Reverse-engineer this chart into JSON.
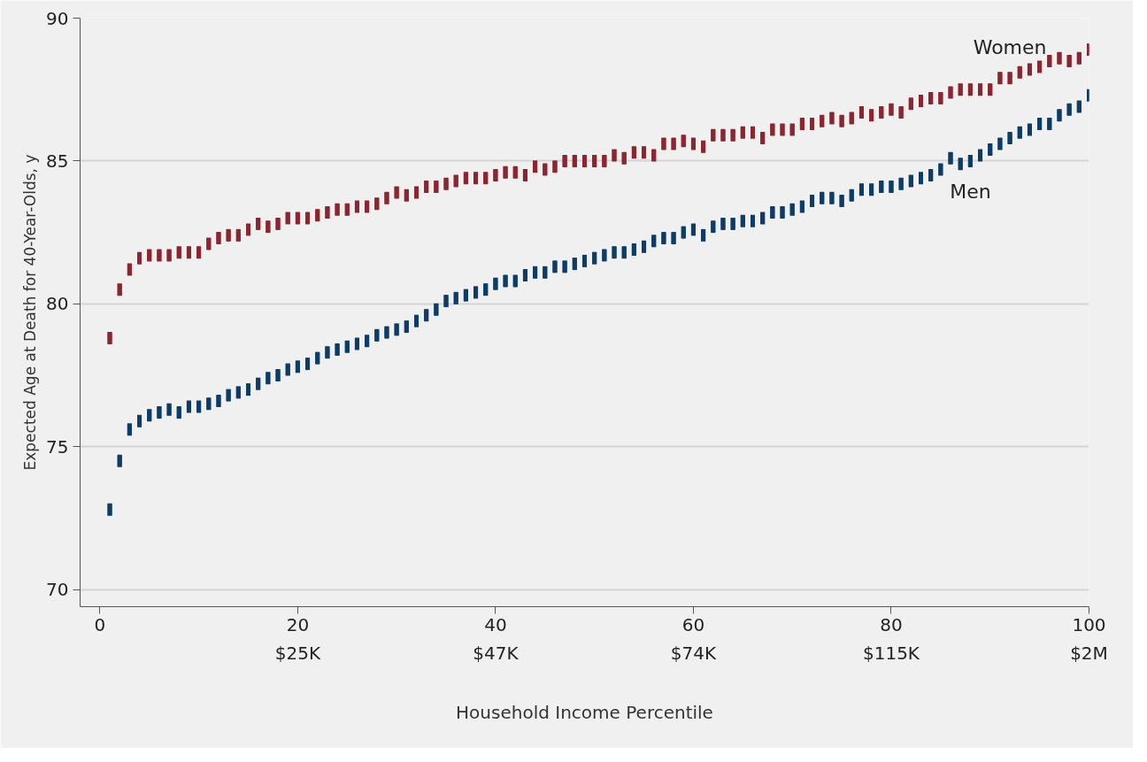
{
  "chart_data": {
    "type": "scatter",
    "xlabel": "Household Income Percentile",
    "ylabel": "Expected Age at Death for 40-Year-Olds, y",
    "x": [
      1,
      2,
      3,
      4,
      5,
      6,
      7,
      8,
      9,
      10,
      11,
      12,
      13,
      14,
      15,
      16,
      17,
      18,
      19,
      20,
      21,
      22,
      23,
      24,
      25,
      26,
      27,
      28,
      29,
      30,
      31,
      32,
      33,
      34,
      35,
      36,
      37,
      38,
      39,
      40,
      41,
      42,
      43,
      44,
      45,
      46,
      47,
      48,
      49,
      50,
      51,
      52,
      53,
      54,
      55,
      56,
      57,
      58,
      59,
      60,
      61,
      62,
      63,
      64,
      65,
      66,
      67,
      68,
      69,
      70,
      71,
      72,
      73,
      74,
      75,
      76,
      77,
      78,
      79,
      80,
      81,
      82,
      83,
      84,
      85,
      86,
      87,
      88,
      89,
      90,
      91,
      92,
      93,
      94,
      95,
      96,
      97,
      98,
      99,
      100
    ],
    "series": [
      {
        "name": "Women",
        "color": "#8b2630",
        "values": [
          78.8,
          80.5,
          81.2,
          81.6,
          81.7,
          81.7,
          81.7,
          81.8,
          81.8,
          81.8,
          82.1,
          82.3,
          82.4,
          82.4,
          82.6,
          82.8,
          82.7,
          82.8,
          83.0,
          83.0,
          83.0,
          83.1,
          83.2,
          83.3,
          83.3,
          83.4,
          83.4,
          83.5,
          83.7,
          83.9,
          83.8,
          83.9,
          84.1,
          84.1,
          84.2,
          84.3,
          84.4,
          84.4,
          84.4,
          84.5,
          84.6,
          84.6,
          84.5,
          84.8,
          84.7,
          84.8,
          85.0,
          85.0,
          85.0,
          85.0,
          85.0,
          85.2,
          85.1,
          85.3,
          85.3,
          85.2,
          85.6,
          85.6,
          85.7,
          85.6,
          85.5,
          85.9,
          85.9,
          85.9,
          86.0,
          86.0,
          85.8,
          86.1,
          86.1,
          86.1,
          86.3,
          86.3,
          86.4,
          86.5,
          86.4,
          86.5,
          86.7,
          86.6,
          86.7,
          86.8,
          86.7,
          87.0,
          87.1,
          87.2,
          87.2,
          87.4,
          87.5,
          87.5,
          87.5,
          87.5,
          87.9,
          87.9,
          88.1,
          88.2,
          88.3,
          88.5,
          88.6,
          88.5,
          88.6,
          88.9
        ],
        "errors": [
          0.2,
          0.2,
          0.2,
          0.2,
          0.2,
          0.2,
          0.2,
          0.2,
          0.2,
          0.2,
          0.2,
          0.2,
          0.2,
          0.2,
          0.2,
          0.2,
          0.2,
          0.2,
          0.2,
          0.2,
          0.2,
          0.2,
          0.2,
          0.2,
          0.2,
          0.2,
          0.2,
          0.2,
          0.2,
          0.2,
          0.2,
          0.2,
          0.2,
          0.2,
          0.2,
          0.2,
          0.2,
          0.2,
          0.2,
          0.2,
          0.2,
          0.2,
          0.2,
          0.2,
          0.2,
          0.2,
          0.2,
          0.2,
          0.2,
          0.2,
          0.2,
          0.2,
          0.2,
          0.2,
          0.2,
          0.2,
          0.2,
          0.2,
          0.2,
          0.2,
          0.2,
          0.2,
          0.2,
          0.2,
          0.2,
          0.2,
          0.2,
          0.2,
          0.2,
          0.2,
          0.2,
          0.2,
          0.2,
          0.2,
          0.2,
          0.2,
          0.2,
          0.2,
          0.2,
          0.2,
          0.2,
          0.2,
          0.2,
          0.2,
          0.2,
          0.2,
          0.2,
          0.2,
          0.2,
          0.2,
          0.2,
          0.2,
          0.2,
          0.2,
          0.2,
          0.2,
          0.2,
          0.2,
          0.2,
          0.2
        ]
      },
      {
        "name": "Men",
        "color": "#0d3d66",
        "values": [
          72.8,
          74.5,
          75.6,
          75.9,
          76.1,
          76.2,
          76.3,
          76.2,
          76.4,
          76.4,
          76.5,
          76.6,
          76.8,
          76.9,
          77.0,
          77.2,
          77.4,
          77.5,
          77.7,
          77.8,
          77.9,
          78.1,
          78.3,
          78.4,
          78.5,
          78.6,
          78.7,
          78.9,
          79.0,
          79.1,
          79.2,
          79.4,
          79.6,
          79.8,
          80.1,
          80.2,
          80.3,
          80.4,
          80.5,
          80.7,
          80.8,
          80.8,
          81.0,
          81.1,
          81.1,
          81.3,
          81.3,
          81.4,
          81.5,
          81.6,
          81.7,
          81.8,
          81.8,
          81.9,
          82.0,
          82.2,
          82.3,
          82.3,
          82.5,
          82.6,
          82.4,
          82.7,
          82.8,
          82.8,
          82.9,
          82.9,
          83.0,
          83.2,
          83.2,
          83.3,
          83.4,
          83.6,
          83.7,
          83.7,
          83.6,
          83.8,
          84.0,
          84.0,
          84.1,
          84.1,
          84.2,
          84.3,
          84.4,
          84.5,
          84.7,
          85.1,
          84.9,
          85.0,
          85.2,
          85.4,
          85.6,
          85.8,
          86.0,
          86.1,
          86.3,
          86.3,
          86.6,
          86.8,
          86.9,
          87.3
        ],
        "errors": [
          0.2,
          0.2,
          0.2,
          0.2,
          0.2,
          0.2,
          0.2,
          0.2,
          0.2,
          0.2,
          0.2,
          0.2,
          0.2,
          0.2,
          0.2,
          0.2,
          0.2,
          0.2,
          0.2,
          0.2,
          0.2,
          0.2,
          0.2,
          0.2,
          0.2,
          0.2,
          0.2,
          0.2,
          0.2,
          0.2,
          0.2,
          0.2,
          0.2,
          0.2,
          0.2,
          0.2,
          0.2,
          0.2,
          0.2,
          0.2,
          0.2,
          0.2,
          0.2,
          0.2,
          0.2,
          0.2,
          0.2,
          0.2,
          0.2,
          0.2,
          0.2,
          0.2,
          0.2,
          0.2,
          0.2,
          0.2,
          0.2,
          0.2,
          0.2,
          0.2,
          0.2,
          0.2,
          0.2,
          0.2,
          0.2,
          0.2,
          0.2,
          0.2,
          0.2,
          0.2,
          0.2,
          0.2,
          0.2,
          0.2,
          0.2,
          0.2,
          0.2,
          0.2,
          0.2,
          0.2,
          0.2,
          0.2,
          0.2,
          0.2,
          0.2,
          0.2,
          0.2,
          0.2,
          0.2,
          0.2,
          0.2,
          0.2,
          0.2,
          0.2,
          0.2,
          0.2,
          0.2,
          0.2,
          0.2,
          0.2
        ]
      }
    ],
    "xlim": [
      -2,
      100
    ],
    "ylim": [
      69.4,
      90
    ],
    "xticks": [
      0,
      20,
      40,
      60,
      80,
      100
    ],
    "annotations": [
      "$25K",
      "$47K",
      "$74K",
      "$115K",
      "$2M"
    ],
    "yticks": [
      70,
      75,
      80,
      85,
      90
    ],
    "grid": "y"
  }
}
